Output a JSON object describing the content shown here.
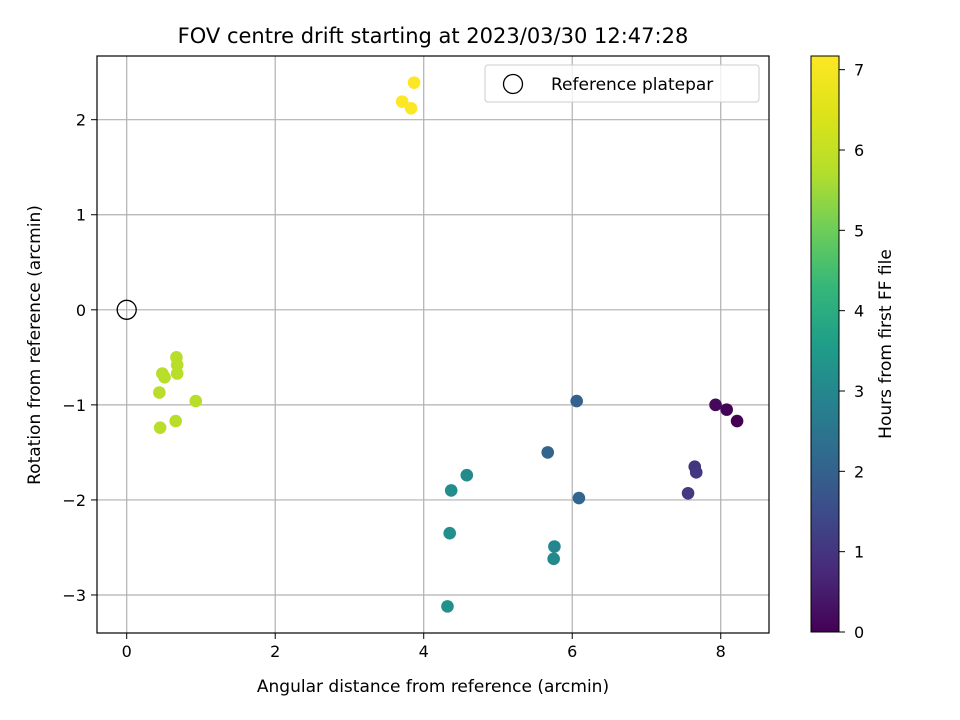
{
  "chart_data": {
    "type": "scatter",
    "title": "FOV centre drift starting at 2023/03/30 12:47:28",
    "xlabel": "Angular distance from reference (arcmin)",
    "ylabel": "Rotation from reference (arcmin)",
    "xlim": [
      -0.4,
      8.65
    ],
    "ylim": [
      -3.4,
      2.67
    ],
    "xticks": [
      0,
      2,
      4,
      6,
      8
    ],
    "yticks": [
      -3,
      -2,
      -1,
      0,
      1,
      2
    ],
    "grid": true,
    "legend": {
      "location": "upper-right",
      "entries": [
        "Reference platepar"
      ]
    },
    "colorbar": {
      "label": "Hours from first FF file",
      "colormap": "viridis",
      "range": [
        0,
        7.17
      ],
      "ticks": [
        0,
        1,
        2,
        3,
        4,
        5,
        6,
        7
      ]
    },
    "reference": {
      "name": "Reference platepar",
      "x": 0,
      "y": 0,
      "marker": "open-circle"
    },
    "points": [
      {
        "x": 8.22,
        "y": -1.17,
        "hours": 0.0
      },
      {
        "x": 8.08,
        "y": -1.05,
        "hours": 0.08
      },
      {
        "x": 7.93,
        "y": -1.0,
        "hours": 0.15
      },
      {
        "x": 7.65,
        "y": -1.65,
        "hours": 1.0
      },
      {
        "x": 7.67,
        "y": -1.71,
        "hours": 1.05
      },
      {
        "x": 7.56,
        "y": -1.93,
        "hours": 1.1
      },
      {
        "x": 6.06,
        "y": -0.96,
        "hours": 2.0
      },
      {
        "x": 5.67,
        "y": -1.5,
        "hours": 2.05
      },
      {
        "x": 6.09,
        "y": -1.98,
        "hours": 2.1
      },
      {
        "x": 5.76,
        "y": -2.49,
        "hours": 3.0
      },
      {
        "x": 5.75,
        "y": -2.62,
        "hours": 3.05
      },
      {
        "x": 4.58,
        "y": -1.74,
        "hours": 3.1
      },
      {
        "x": 4.37,
        "y": -1.9,
        "hours": 3.15
      },
      {
        "x": 4.35,
        "y": -2.35,
        "hours": 3.2
      },
      {
        "x": 4.32,
        "y": -3.12,
        "hours": 3.25
      },
      {
        "x": 0.67,
        "y": -0.5,
        "hours": 5.8
      },
      {
        "x": 0.68,
        "y": -0.58,
        "hours": 5.8
      },
      {
        "x": 0.48,
        "y": -0.67,
        "hours": 5.8
      },
      {
        "x": 0.51,
        "y": -0.71,
        "hours": 5.8
      },
      {
        "x": 0.68,
        "y": -0.67,
        "hours": 5.8
      },
      {
        "x": 0.44,
        "y": -0.87,
        "hours": 5.8
      },
      {
        "x": 0.93,
        "y": -0.96,
        "hours": 5.8
      },
      {
        "x": 0.66,
        "y": -1.17,
        "hours": 5.8
      },
      {
        "x": 0.45,
        "y": -1.24,
        "hours": 5.8
      },
      {
        "x": 3.87,
        "y": 2.39,
        "hours": 7.15
      },
      {
        "x": 3.71,
        "y": 2.19,
        "hours": 7.15
      },
      {
        "x": 3.83,
        "y": 2.12,
        "hours": 7.15
      }
    ]
  }
}
